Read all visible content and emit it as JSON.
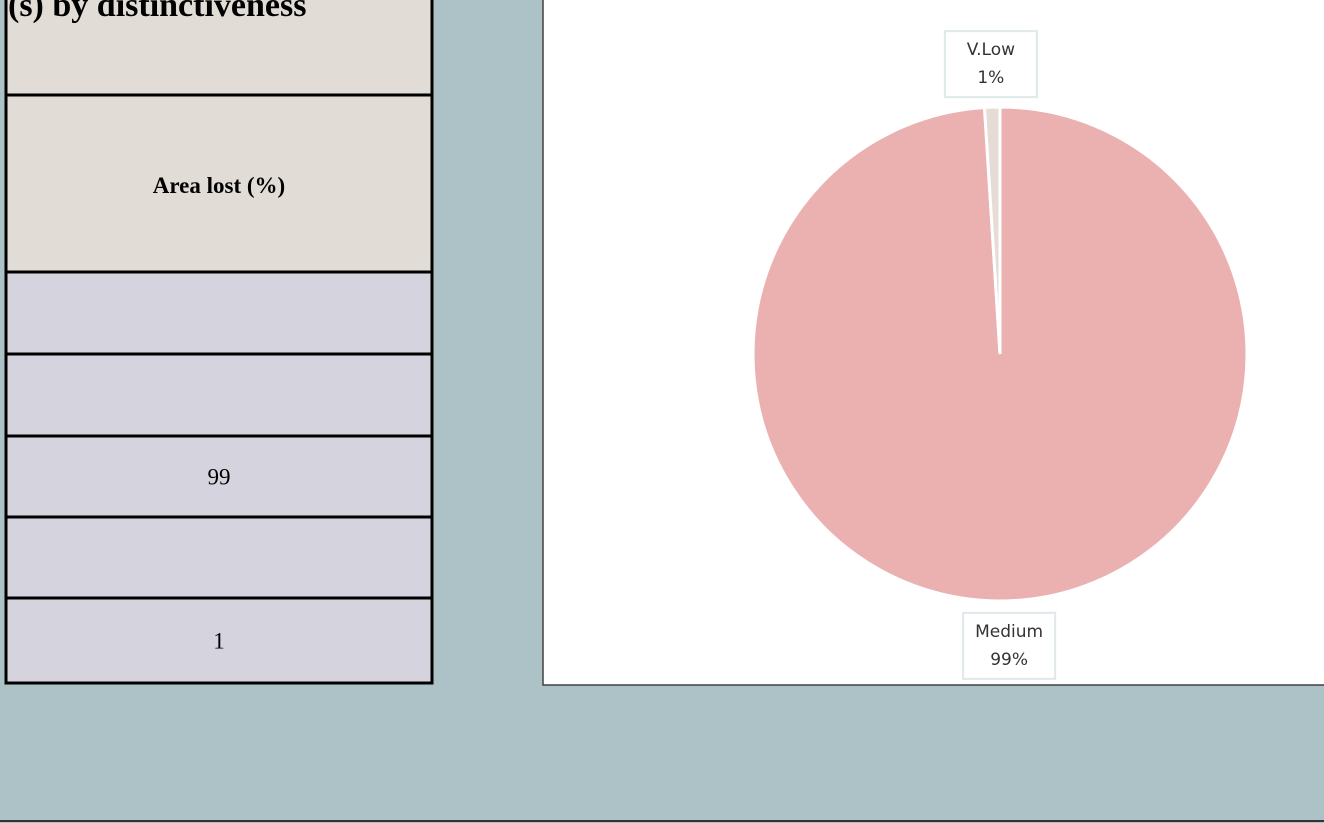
{
  "table": {
    "title": "(s) by distinctiveness",
    "header": "Area lost (%)",
    "rows": [
      null,
      null,
      99,
      null,
      1
    ]
  },
  "chart_data": {
    "type": "pie",
    "categories": [
      "Medium",
      "V.Low"
    ],
    "values": [
      99,
      1
    ],
    "value_labels": [
      "99%",
      "1%"
    ],
    "colors": [
      "#ebb0b0",
      "#e6dcd5"
    ]
  }
}
